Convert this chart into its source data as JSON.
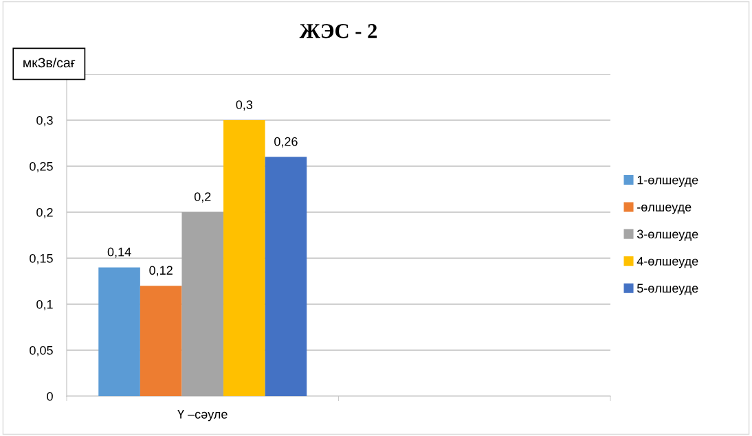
{
  "chart_data": {
    "type": "bar",
    "title": "ЖЭС - 2",
    "ylabel": "мкЗв/сағ",
    "categories": [
      "Ү –сәуле",
      null
    ],
    "series": [
      {
        "name": "1-өлшеуде",
        "color": "#5b9bd5",
        "values": [
          0.14,
          null
        ],
        "value_labels": [
          "0,14",
          null
        ]
      },
      {
        "name": "-өлшеуде",
        "color": "#ed7d31",
        "values": [
          0.12,
          null
        ],
        "value_labels": [
          "0,12",
          null
        ]
      },
      {
        "name": "3-өлшеуде",
        "color": "#a5a5a5",
        "values": [
          0.2,
          null
        ],
        "value_labels": [
          "0,2",
          null
        ]
      },
      {
        "name": "4-өлшеуде",
        "color": "#ffc000",
        "values": [
          0.3,
          null
        ],
        "value_labels": [
          "0,3",
          null
        ]
      },
      {
        "name": "5-өлшеуде",
        "color": "#4472c4",
        "values": [
          0.26,
          null
        ],
        "value_labels": [
          "0,26",
          null
        ]
      }
    ],
    "ylim": [
      0,
      0.35
    ],
    "yticks": [
      0,
      {
        "value": 0.05,
        "label": "0,05"
      },
      {
        "value": 0.1,
        "label": "0,1"
      },
      {
        "value": 0.15,
        "label": "0,15"
      },
      {
        "value": 0.2,
        "label": "0,2"
      },
      {
        "value": 0.25,
        "label": "0,25"
      },
      {
        "value": 0.3,
        "label": "0,3"
      },
      {
        "value": 0.35,
        "label": null
      }
    ],
    "grid": "y",
    "legend": "right"
  }
}
